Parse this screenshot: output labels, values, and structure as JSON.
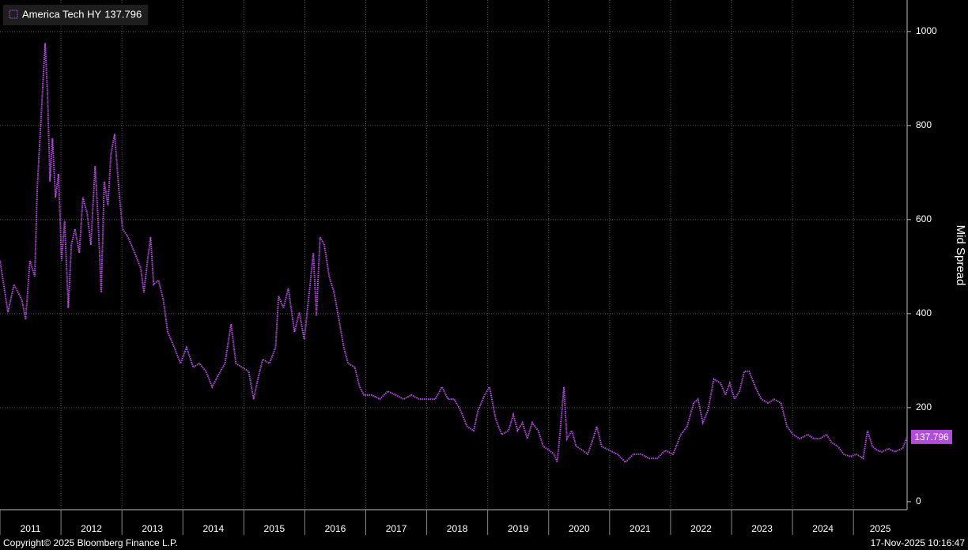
{
  "chart_data": {
    "type": "line",
    "y_label": "Mid Spread",
    "source": "Copyright© 2025 Bloomberg Finance L.P.",
    "timestamp": "17-Nov-2025 10:16:47",
    "xlim": [
      2011,
      2025.88
    ],
    "xticks": [
      2011,
      2012,
      2013,
      2014,
      2015,
      2016,
      2017,
      2018,
      2019,
      2020,
      2021,
      2022,
      2023,
      2024,
      2025
    ],
    "ylim": [
      -17,
      1067
    ],
    "yticks": [
      0,
      200,
      400,
      600,
      800,
      1000
    ],
    "grid": true,
    "legend": "top-left",
    "x": [
      2011.0,
      2011.13,
      2011.23,
      2011.36,
      2011.42,
      2011.49,
      2011.57,
      2011.61,
      2011.68,
      2011.74,
      2011.78,
      2011.82,
      2011.86,
      2011.91,
      2011.96,
      2012.01,
      2012.06,
      2012.12,
      2012.17,
      2012.23,
      2012.3,
      2012.36,
      2012.43,
      2012.49,
      2012.56,
      2012.61,
      2012.66,
      2012.71,
      2012.77,
      2012.82,
      2012.88,
      2012.95,
      2013.01,
      2013.1,
      2013.21,
      2013.31,
      2013.36,
      2013.42,
      2013.47,
      2013.52,
      2013.6,
      2013.68,
      2013.75,
      2013.86,
      2013.96,
      2014.06,
      2014.17,
      2014.27,
      2014.38,
      2014.48,
      2014.58,
      2014.69,
      2014.79,
      2014.87,
      2014.97,
      2015.08,
      2015.16,
      2015.23,
      2015.31,
      2015.42,
      2015.52,
      2015.57,
      2015.65,
      2015.73,
      2015.83,
      2015.91,
      2015.99,
      2016.06,
      2016.14,
      2016.19,
      2016.25,
      2016.32,
      2016.4,
      2016.48,
      2016.56,
      2016.64,
      2016.71,
      2016.82,
      2016.9,
      2016.97,
      2017.1,
      2017.23,
      2017.36,
      2017.49,
      2017.62,
      2017.75,
      2017.88,
      2018.01,
      2018.14,
      2018.25,
      2018.35,
      2018.45,
      2018.56,
      2018.66,
      2018.77,
      2018.84,
      2018.95,
      2019.03,
      2019.13,
      2019.23,
      2019.34,
      2019.42,
      2019.49,
      2019.57,
      2019.65,
      2019.73,
      2019.83,
      2019.91,
      2020.01,
      2020.09,
      2020.14,
      2020.19,
      2020.25,
      2020.3,
      2020.38,
      2020.45,
      2020.56,
      2020.64,
      2020.71,
      2020.79,
      2020.87,
      2021.0,
      2021.13,
      2021.26,
      2021.39,
      2021.52,
      2021.65,
      2021.78,
      2021.91,
      2022.04,
      2022.17,
      2022.27,
      2022.38,
      2022.45,
      2022.53,
      2022.61,
      2022.71,
      2022.82,
      2022.9,
      2022.97,
      2023.05,
      2023.13,
      2023.21,
      2023.29,
      2023.39,
      2023.49,
      2023.6,
      2023.7,
      2023.81,
      2023.91,
      2024.01,
      2024.12,
      2024.25,
      2024.35,
      2024.45,
      2024.56,
      2024.64,
      2024.74,
      2024.84,
      2024.95,
      2025.05,
      2025.16,
      2025.23,
      2025.31,
      2025.39,
      2025.47,
      2025.57,
      2025.68,
      2025.81,
      2025.88
    ],
    "series": [
      {
        "name": "America Tech HY",
        "color": "#b44be1",
        "values": [
          513,
          403,
          462,
          429,
          387,
          513,
          479,
          664,
          832,
          975,
          866,
          681,
          773,
          647,
          697,
          513,
          597,
          412,
          546,
          580,
          529,
          647,
          613,
          546,
          714,
          597,
          445,
          681,
          630,
          739,
          782,
          664,
          580,
          563,
          529,
          496,
          445,
          513,
          563,
          462,
          471,
          429,
          361,
          328,
          294,
          328,
          286,
          294,
          277,
          244,
          269,
          294,
          378,
          294,
          286,
          277,
          218,
          261,
          303,
          294,
          328,
          437,
          412,
          454,
          361,
          403,
          345,
          429,
          529,
          395,
          563,
          546,
          479,
          445,
          387,
          328,
          294,
          286,
          244,
          227,
          227,
          218,
          235,
          227,
          218,
          227,
          218,
          218,
          218,
          244,
          218,
          218,
          193,
          160,
          151,
          193,
          227,
          244,
          176,
          143,
          151,
          185,
          151,
          168,
          134,
          168,
          151,
          118,
          109,
          101,
          84,
          151,
          244,
          134,
          151,
          118,
          109,
          101,
          126,
          160,
          118,
          109,
          101,
          84,
          101,
          101,
          92,
          92,
          109,
          101,
          143,
          160,
          210,
          218,
          168,
          193,
          261,
          252,
          227,
          252,
          218,
          235,
          277,
          277,
          244,
          218,
          210,
          218,
          210,
          160,
          143,
          134,
          143,
          134,
          134,
          143,
          126,
          118,
          101,
          96,
          101,
          92,
          151,
          118,
          109,
          106,
          113,
          106,
          114,
          137.796
        ]
      }
    ]
  }
}
